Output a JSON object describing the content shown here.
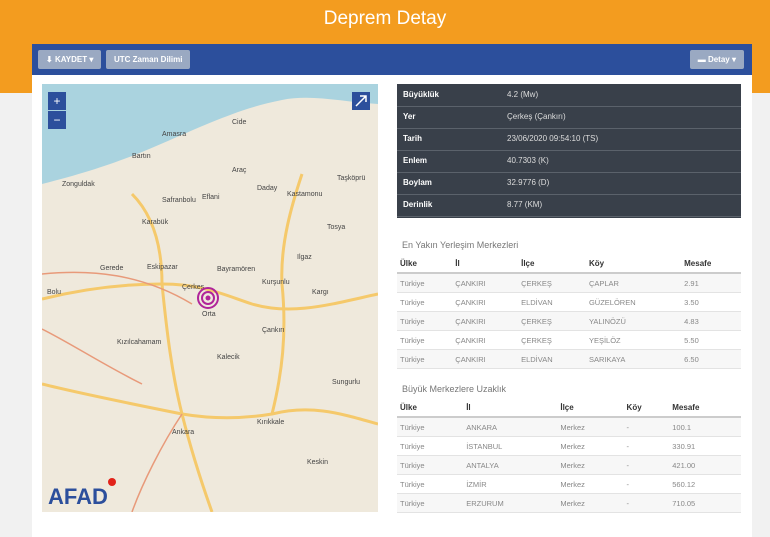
{
  "header": {
    "title": "Deprem Detay"
  },
  "toolbar": {
    "save": "KAYDET",
    "utc": "UTC Zaman Dilimi",
    "detail": "Detay"
  },
  "map": {
    "zoom_in": "+",
    "zoom_out": "−",
    "logo": "AFAD",
    "labels": [
      "Zonguldak",
      "Bartın",
      "Amasra",
      "Cide",
      "Karabük",
      "Safranbolu",
      "Eflani",
      "Araç",
      "Daday",
      "Kastamonu",
      "Taşköprü",
      "Gerede",
      "Eskipazar",
      "Bayramören",
      "Ilgaz",
      "Orta",
      "Çerkeş",
      "Kurşunlu",
      "Çankırı",
      "Kızılcahamam",
      "Kalecik",
      "Ankara",
      "Kırıkkale",
      "Keskin",
      "Bolu",
      "Kargı",
      "Tosya",
      "Sungurlu"
    ]
  },
  "info": {
    "rows": [
      [
        "Büyüklük",
        "4.2 (Mw)"
      ],
      [
        "Yer",
        "Çerkeş (Çankırı)"
      ],
      [
        "Tarih",
        "23/06/2020 09:54:10 (TS)"
      ],
      [
        "Enlem",
        "40.7303 (K)"
      ],
      [
        "Boylam",
        "32.9776 (D)"
      ],
      [
        "Derinlik",
        "8.77 (KM)"
      ]
    ]
  },
  "nearest": {
    "title": "En Yakın Yerleşim Merkezleri",
    "columns": [
      "Ülke",
      "İl",
      "İlçe",
      "Köy",
      "Mesafe"
    ],
    "rows": [
      [
        "Türkiye",
        "ÇANKIRI",
        "ÇERKEŞ",
        "ÇAPLAR",
        "2.91"
      ],
      [
        "Türkiye",
        "ÇANKIRI",
        "ELDİVAN",
        "GÜZELÖREN",
        "3.50"
      ],
      [
        "Türkiye",
        "ÇANKIRI",
        "ÇERKEŞ",
        "YALINÖZÜ",
        "4.83"
      ],
      [
        "Türkiye",
        "ÇANKIRI",
        "ÇERKEŞ",
        "YEŞİLÖZ",
        "5.50"
      ],
      [
        "Türkiye",
        "ÇANKIRI",
        "ELDİVAN",
        "SARIKAYA",
        "6.50"
      ]
    ]
  },
  "cities": {
    "title": "Büyük Merkezlere Uzaklık",
    "columns": [
      "Ülke",
      "İl",
      "İlçe",
      "Köy",
      "Mesafe"
    ],
    "rows": [
      [
        "Türkiye",
        "ANKARA",
        "Merkez",
        "-",
        "100.1"
      ],
      [
        "Türkiye",
        "İSTANBUL",
        "Merkez",
        "-",
        "330.91"
      ],
      [
        "Türkiye",
        "ANTALYA",
        "Merkez",
        "-",
        "421.00"
      ],
      [
        "Türkiye",
        "İZMİR",
        "Merkez",
        "-",
        "560.12"
      ],
      [
        "Türkiye",
        "ERZURUM",
        "Merkez",
        "-",
        "710.05"
      ]
    ]
  }
}
